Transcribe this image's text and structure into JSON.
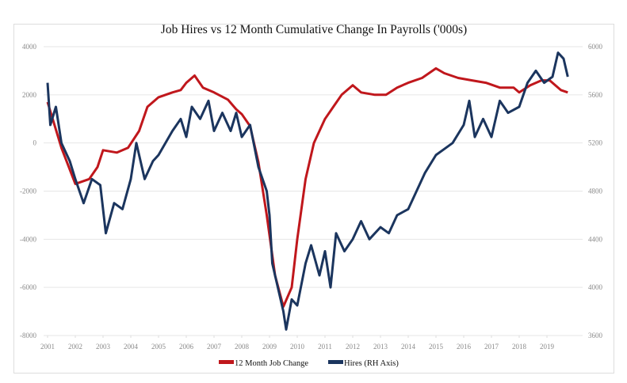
{
  "chart_data": {
    "type": "line",
    "title": "Job Hires vs 12 Month Cumulative Change In Payrolls ('000s)",
    "xlabel": "",
    "ylabel": "",
    "y2label": "",
    "xlim": [
      2001,
      2019
    ],
    "ylim": [
      -8000,
      4000
    ],
    "y2lim": [
      3600,
      6000
    ],
    "x_ticks": [
      "2001",
      "2002",
      "2003",
      "2004",
      "2005",
      "2006",
      "2007",
      "2008",
      "2009",
      "2010",
      "2011",
      "2012",
      "2013",
      "2014",
      "2015",
      "2016",
      "2017",
      "2018",
      "2019"
    ],
    "y_ticks": [
      "4000",
      "2000",
      "0",
      "-2000",
      "-4000",
      "-6000",
      "-8000"
    ],
    "y2_ticks": [
      "6000",
      "5600",
      "5200",
      "4800",
      "4400",
      "4000",
      "3600"
    ],
    "grid": true,
    "legend_position": "bottom-center",
    "series": [
      {
        "name": "12 Month Job Change",
        "axis": "left",
        "color": "#c0171c",
        "x": [
          2001.0,
          2001.5,
          2002.0,
          2002.5,
          2002.8,
          2003.0,
          2003.5,
          2003.9,
          2004.3,
          2004.6,
          2005.0,
          2005.5,
          2005.8,
          2006.0,
          2006.3,
          2006.6,
          2007.0,
          2007.5,
          2007.8,
          2008.0,
          2008.3,
          2008.6,
          2008.9,
          2009.2,
          2009.5,
          2009.8,
          2010.0,
          2010.3,
          2010.6,
          2011.0,
          2011.3,
          2011.6,
          2012.0,
          2012.3,
          2012.8,
          2013.2,
          2013.6,
          2014.0,
          2014.5,
          2015.0,
          2015.3,
          2015.8,
          2016.3,
          2016.8,
          2017.3,
          2017.8,
          2018.0,
          2018.4,
          2018.8,
          2019.1,
          2019.5,
          2019.75
        ],
        "values": [
          1700,
          -200,
          -1700,
          -1500,
          -1000,
          -300,
          -400,
          -200,
          500,
          1500,
          1900,
          2100,
          2200,
          2500,
          2800,
          2300,
          2100,
          1800,
          1400,
          1200,
          700,
          -800,
          -3000,
          -5500,
          -6800,
          -6000,
          -4000,
          -1500,
          0,
          1000,
          1500,
          2000,
          2400,
          2100,
          2000,
          2000,
          2300,
          2500,
          2700,
          3100,
          2900,
          2700,
          2600,
          2500,
          2300,
          2300,
          2100,
          2400,
          2600,
          2600,
          2200,
          2100
        ]
      },
      {
        "name": "Hires (RH Axis)",
        "axis": "right",
        "color": "#1b355e",
        "x": [
          2001.0,
          2001.1,
          2001.3,
          2001.5,
          2001.8,
          2002.0,
          2002.3,
          2002.6,
          2002.9,
          2003.1,
          2003.4,
          2003.7,
          2004.0,
          2004.2,
          2004.5,
          2004.8,
          2005.0,
          2005.5,
          2005.8,
          2006.0,
          2006.2,
          2006.5,
          2006.8,
          2007.0,
          2007.3,
          2007.6,
          2007.8,
          2008.0,
          2008.3,
          2008.6,
          2008.9,
          2009.0,
          2009.1,
          2009.3,
          2009.5,
          2009.6,
          2009.8,
          2010.0,
          2010.3,
          2010.5,
          2010.8,
          2011.0,
          2011.2,
          2011.4,
          2011.7,
          2012.0,
          2012.3,
          2012.6,
          2013.0,
          2013.3,
          2013.6,
          2014.0,
          2014.3,
          2014.6,
          2015.0,
          2015.3,
          2015.6,
          2016.0,
          2016.2,
          2016.4,
          2016.7,
          2017.0,
          2017.3,
          2017.6,
          2018.0,
          2018.3,
          2018.6,
          2018.9,
          2019.2,
          2019.4,
          2019.6,
          2019.75
        ],
        "values": [
          5700,
          5350,
          5500,
          5200,
          5050,
          4900,
          4700,
          4900,
          4850,
          4450,
          4700,
          4650,
          4900,
          5200,
          4900,
          5050,
          5100,
          5300,
          5400,
          5250,
          5500,
          5400,
          5550,
          5300,
          5450,
          5300,
          5450,
          5250,
          5350,
          5000,
          4800,
          4600,
          4200,
          4000,
          3800,
          3650,
          3900,
          3850,
          4200,
          4350,
          4100,
          4300,
          4000,
          4450,
          4300,
          4400,
          4550,
          4400,
          4500,
          4450,
          4600,
          4650,
          4800,
          4950,
          5100,
          5150,
          5200,
          5350,
          5550,
          5250,
          5400,
          5250,
          5550,
          5450,
          5500,
          5700,
          5800,
          5700,
          5750,
          5950,
          5900,
          5750
        ]
      }
    ]
  }
}
